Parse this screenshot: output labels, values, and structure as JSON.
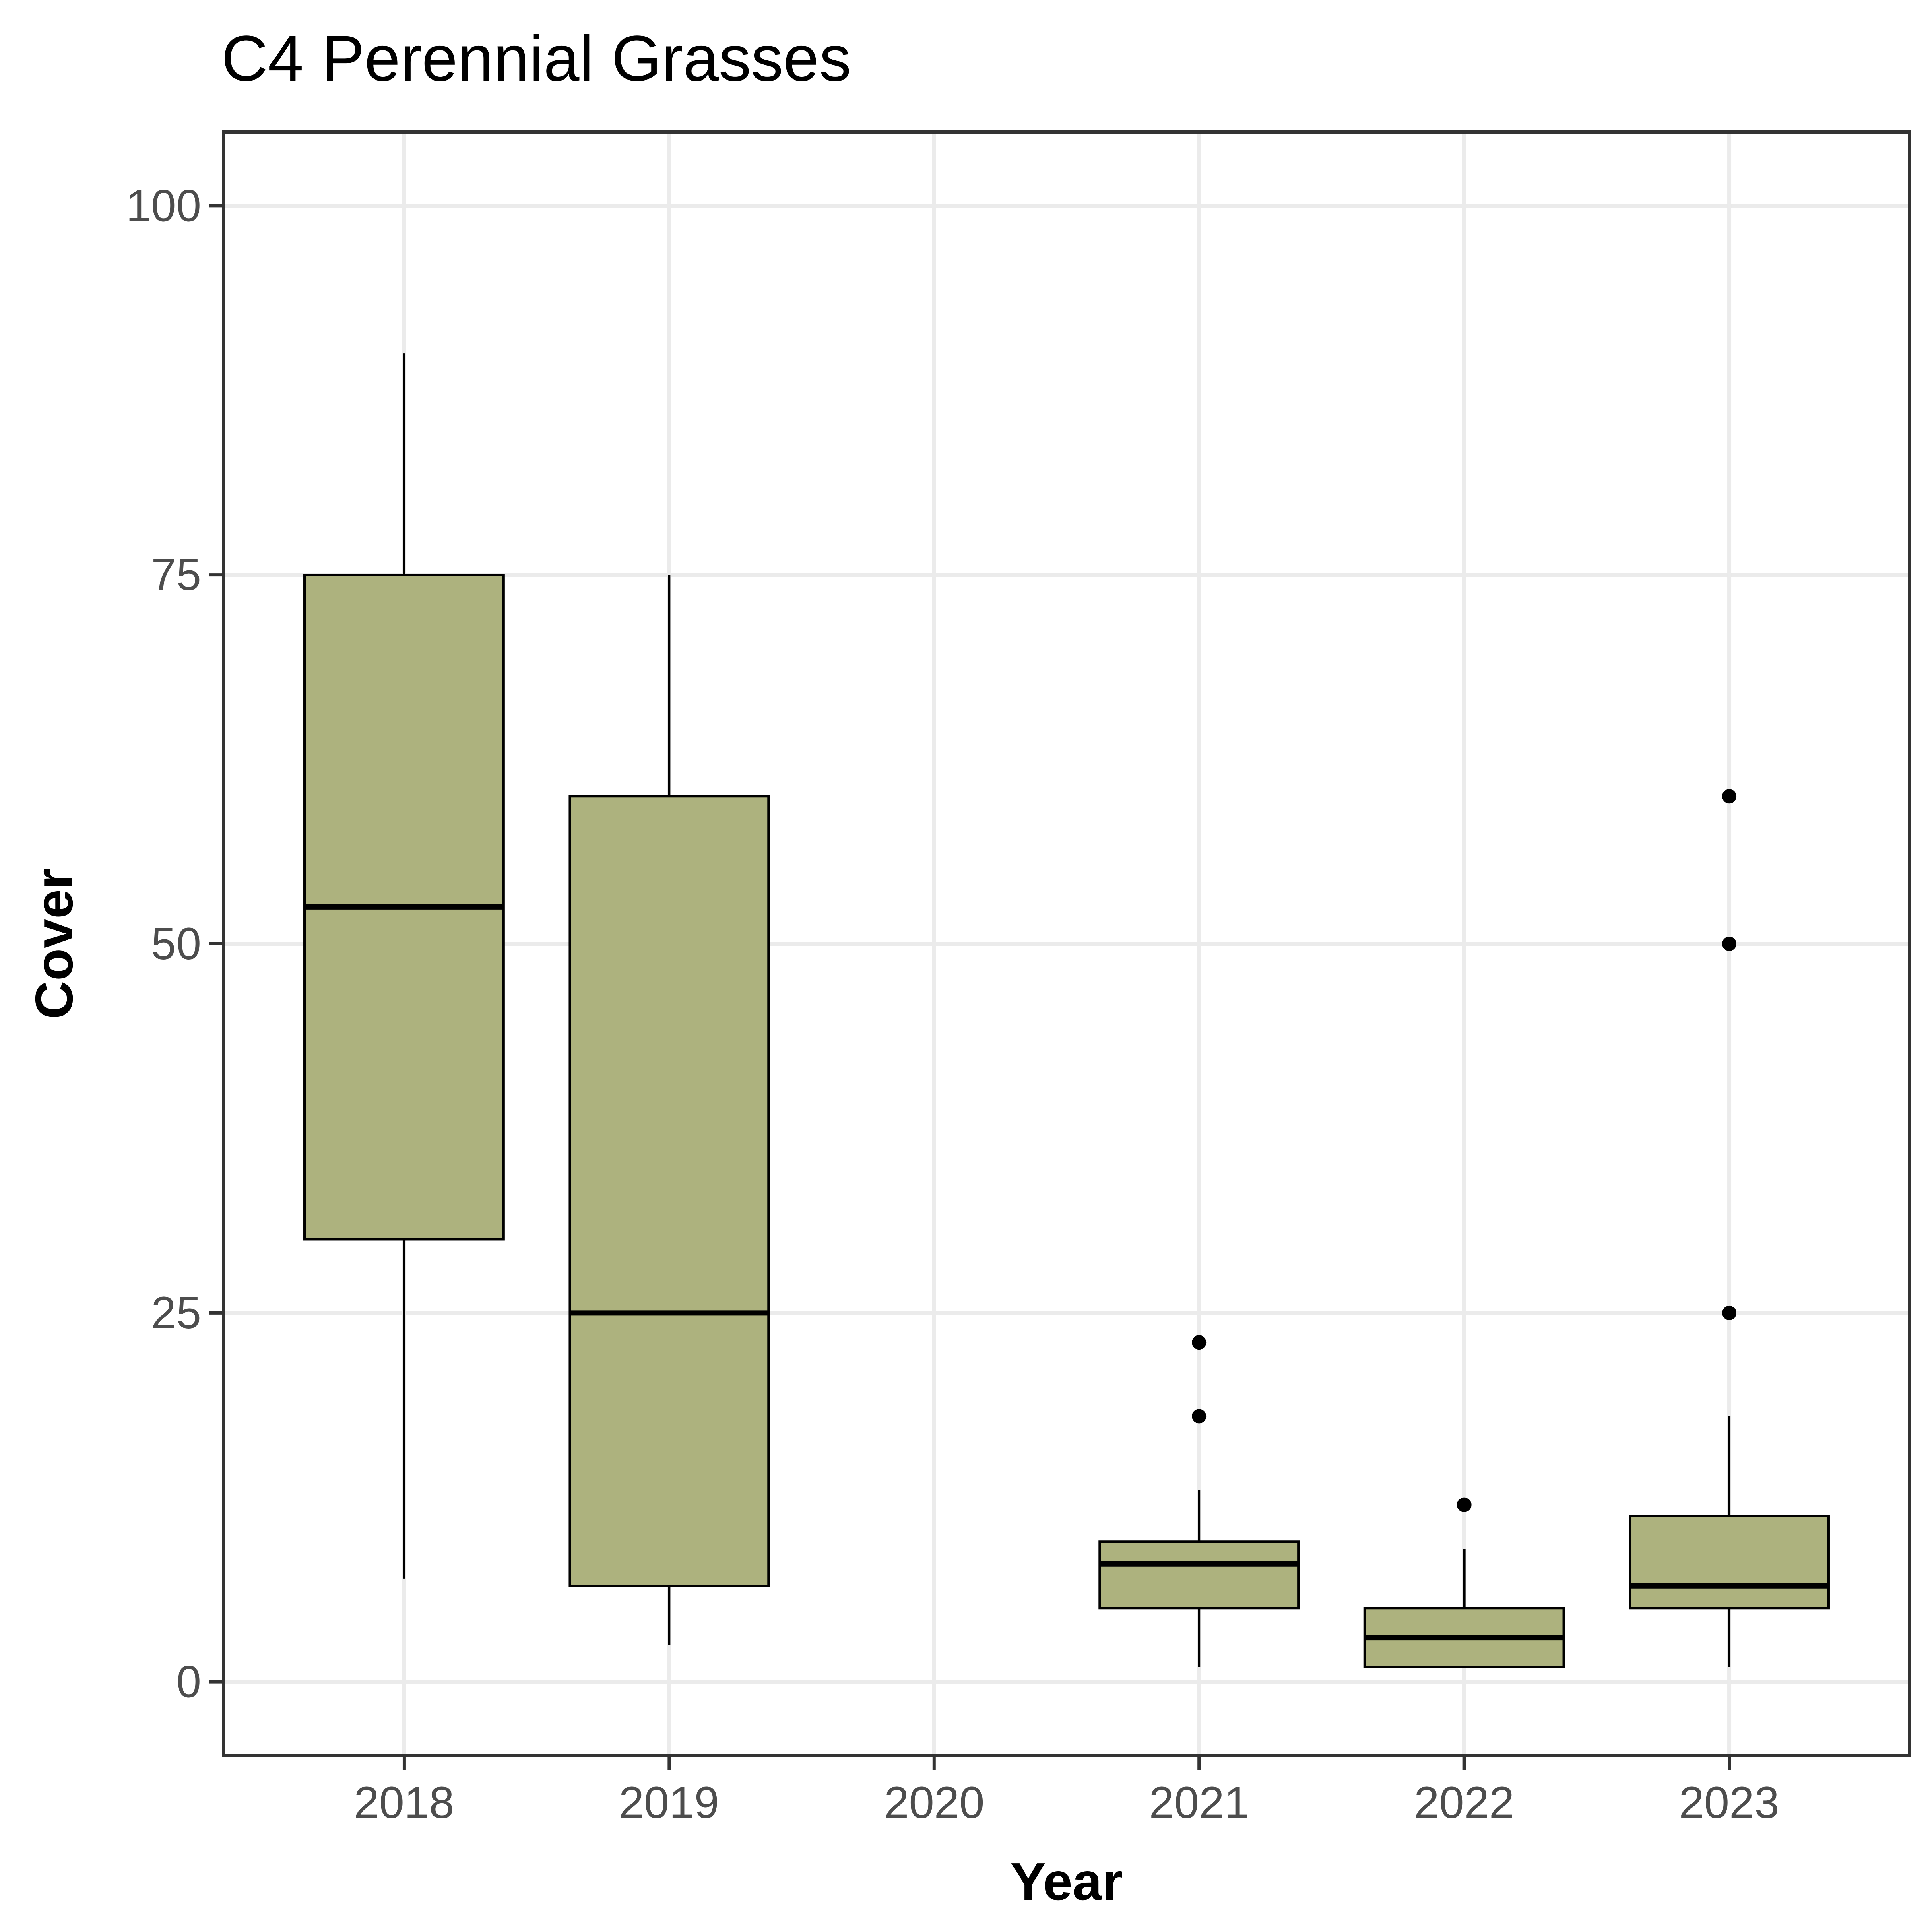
{
  "chart_data": {
    "type": "boxplot",
    "title": "C4 Perennial Grasses",
    "xlabel": "Year",
    "ylabel": "Cover",
    "categories": [
      "2018",
      "2019",
      "2020",
      "2021",
      "2022",
      "2023"
    ],
    "yticks": [
      0,
      25,
      50,
      75,
      100
    ],
    "ylim": [
      -5,
      105
    ],
    "grid": true,
    "legend": "none",
    "fill_color": "#adb27e",
    "series": [
      {
        "category": "2018",
        "whisker_low": 7,
        "q1": 30,
        "median": 52.5,
        "q3": 75,
        "whisker_high": 90,
        "outliers": []
      },
      {
        "category": "2019",
        "whisker_low": 2.5,
        "q1": 6.5,
        "median": 25,
        "q3": 60,
        "whisker_high": 75,
        "outliers": []
      },
      {
        "category": "2020",
        "whisker_low": null,
        "q1": null,
        "median": null,
        "q3": null,
        "whisker_high": null,
        "outliers": []
      },
      {
        "category": "2021",
        "whisker_low": 1,
        "q1": 5,
        "median": 8,
        "q3": 9.5,
        "whisker_high": 13,
        "outliers": [
          18,
          23
        ]
      },
      {
        "category": "2022",
        "whisker_low": 1,
        "q1": 1,
        "median": 3,
        "q3": 5,
        "whisker_high": 9,
        "outliers": [
          12
        ]
      },
      {
        "category": "2023",
        "whisker_low": 1,
        "q1": 5,
        "median": 6.5,
        "q3": 11.25,
        "whisker_high": 18,
        "outliers": [
          25,
          50,
          60
        ]
      }
    ]
  }
}
